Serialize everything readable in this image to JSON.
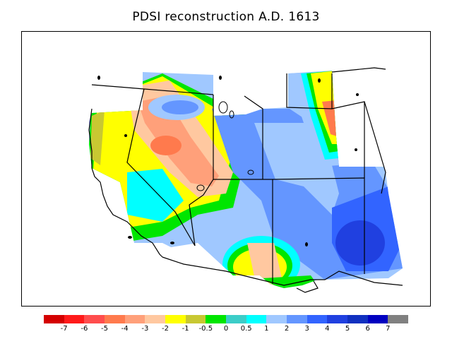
{
  "title": "PDSI reconstruction A.D. 1613",
  "legend": {
    "colors": [
      "#d40000",
      "#ff1a1a",
      "#ff4d4d",
      "#ff7a4d",
      "#ffa07a",
      "#ffc8a0",
      "#ffff00",
      "#c8c832",
      "#00e600",
      "#3ccdc8",
      "#00ffff",
      "#a0c8ff",
      "#6496ff",
      "#3264ff",
      "#2040e0",
      "#1030c0",
      "#0000c0",
      "#808080"
    ],
    "labels": [
      "-7",
      "-6",
      "-5",
      "-4",
      "-3",
      "-2",
      "-1",
      "-0.5",
      "0",
      "0.5",
      "1",
      "2",
      "3",
      "4",
      "5",
      "6",
      "7"
    ]
  }
}
